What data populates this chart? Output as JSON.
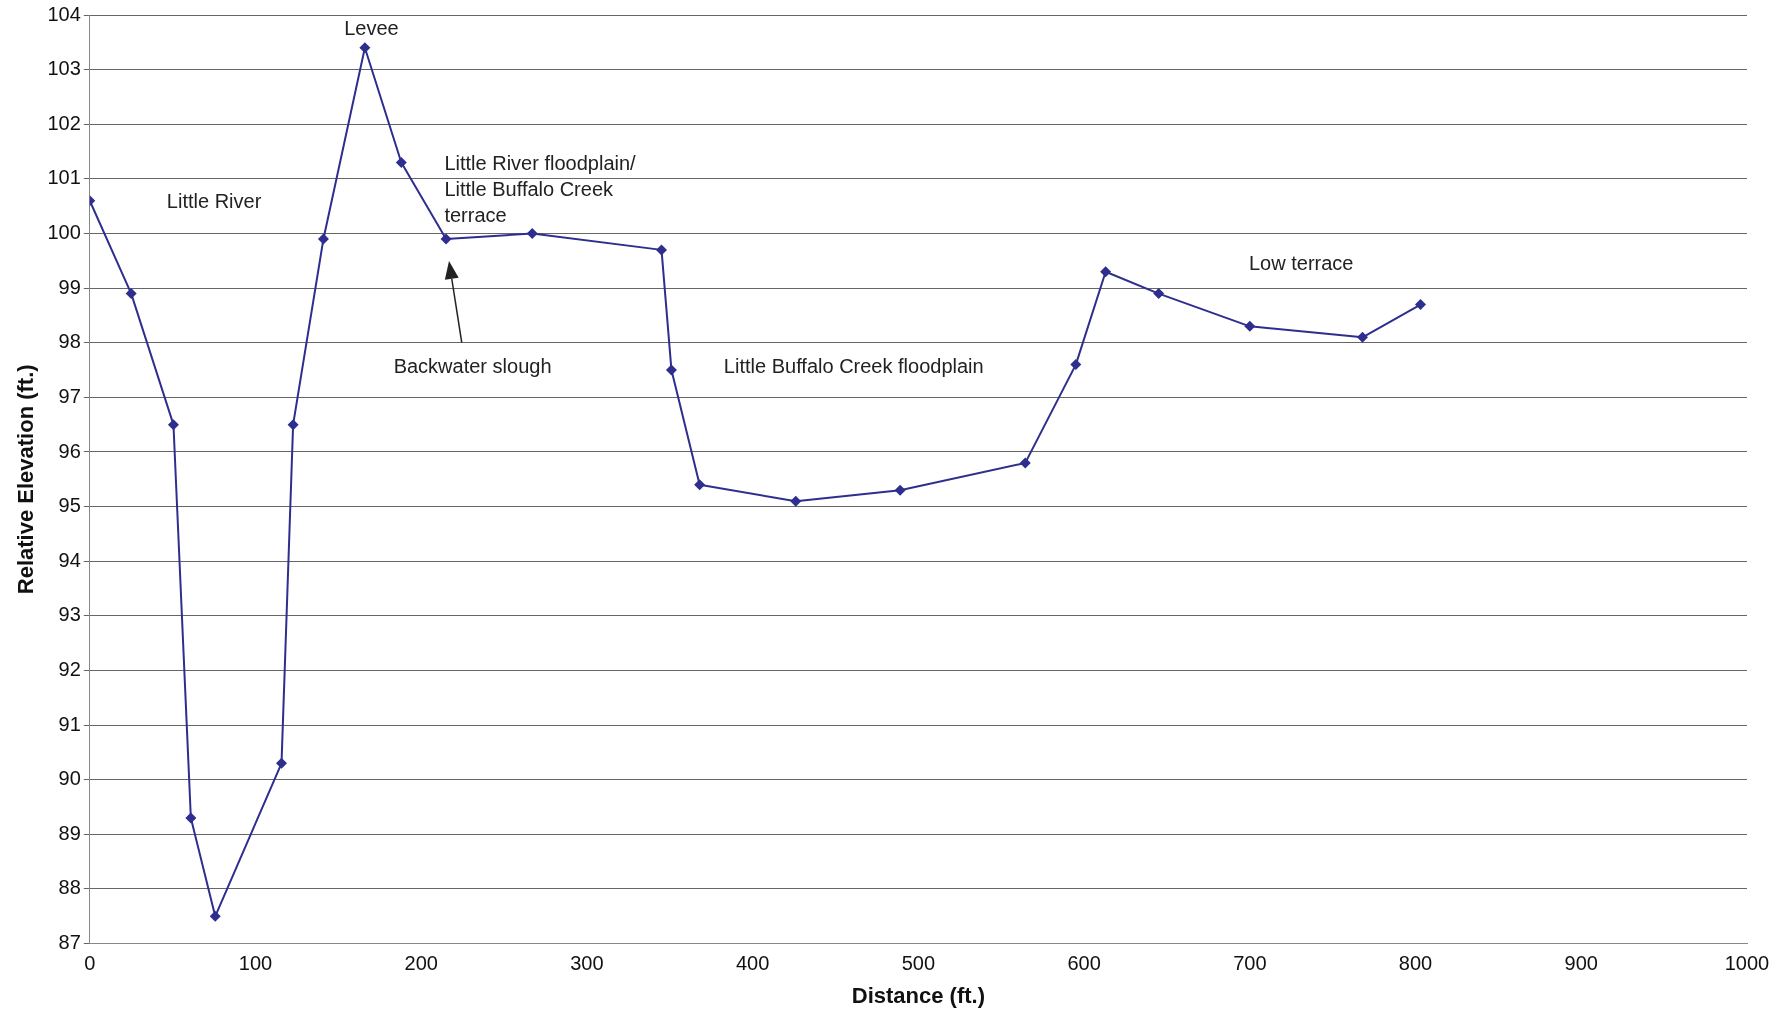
{
  "chart_data": {
    "type": "line",
    "xlabel": "Distance (ft.)",
    "ylabel": "Relative Elevation (ft.)",
    "x": [
      0,
      25,
      50.5,
      61,
      75.7,
      115.7,
      122.7,
      141,
      166,
      188,
      215,
      267,
      345,
      351,
      368,
      426,
      489,
      564.5,
      595,
      613,
      645,
      700,
      768,
      803
    ],
    "series": [
      {
        "color": "#2e2e8f",
        "values": [
          100.6,
          98.9,
          96.5,
          89.3,
          87.5,
          90.3,
          96.5,
          99.9,
          103.4,
          101.3,
          99.9,
          100.0,
          99.7,
          97.5,
          95.4,
          95.1,
          95.3,
          95.8,
          97.6,
          99.3,
          98.9,
          98.3,
          98.1,
          98.7
        ]
      }
    ],
    "xlim": [
      0,
      1000
    ],
    "xticks": [
      0,
      100,
      200,
      300,
      400,
      500,
      600,
      700,
      800,
      900,
      1000
    ],
    "ylim": [
      87,
      104
    ],
    "yticks": [
      87,
      88,
      89,
      90,
      91,
      92,
      93,
      94,
      95,
      96,
      97,
      98,
      99,
      100,
      101,
      102,
      103,
      104
    ],
    "grid": "y",
    "legend": false,
    "marker": "diamond",
    "line_style": "solid",
    "annotations": [
      "Little River",
      "Levee",
      "Little River floodplain/\nLittle Buffalo Creek\nterrace",
      "Backwater slough",
      "Little Buffalo Creek floodplain",
      "Low terrace"
    ]
  }
}
